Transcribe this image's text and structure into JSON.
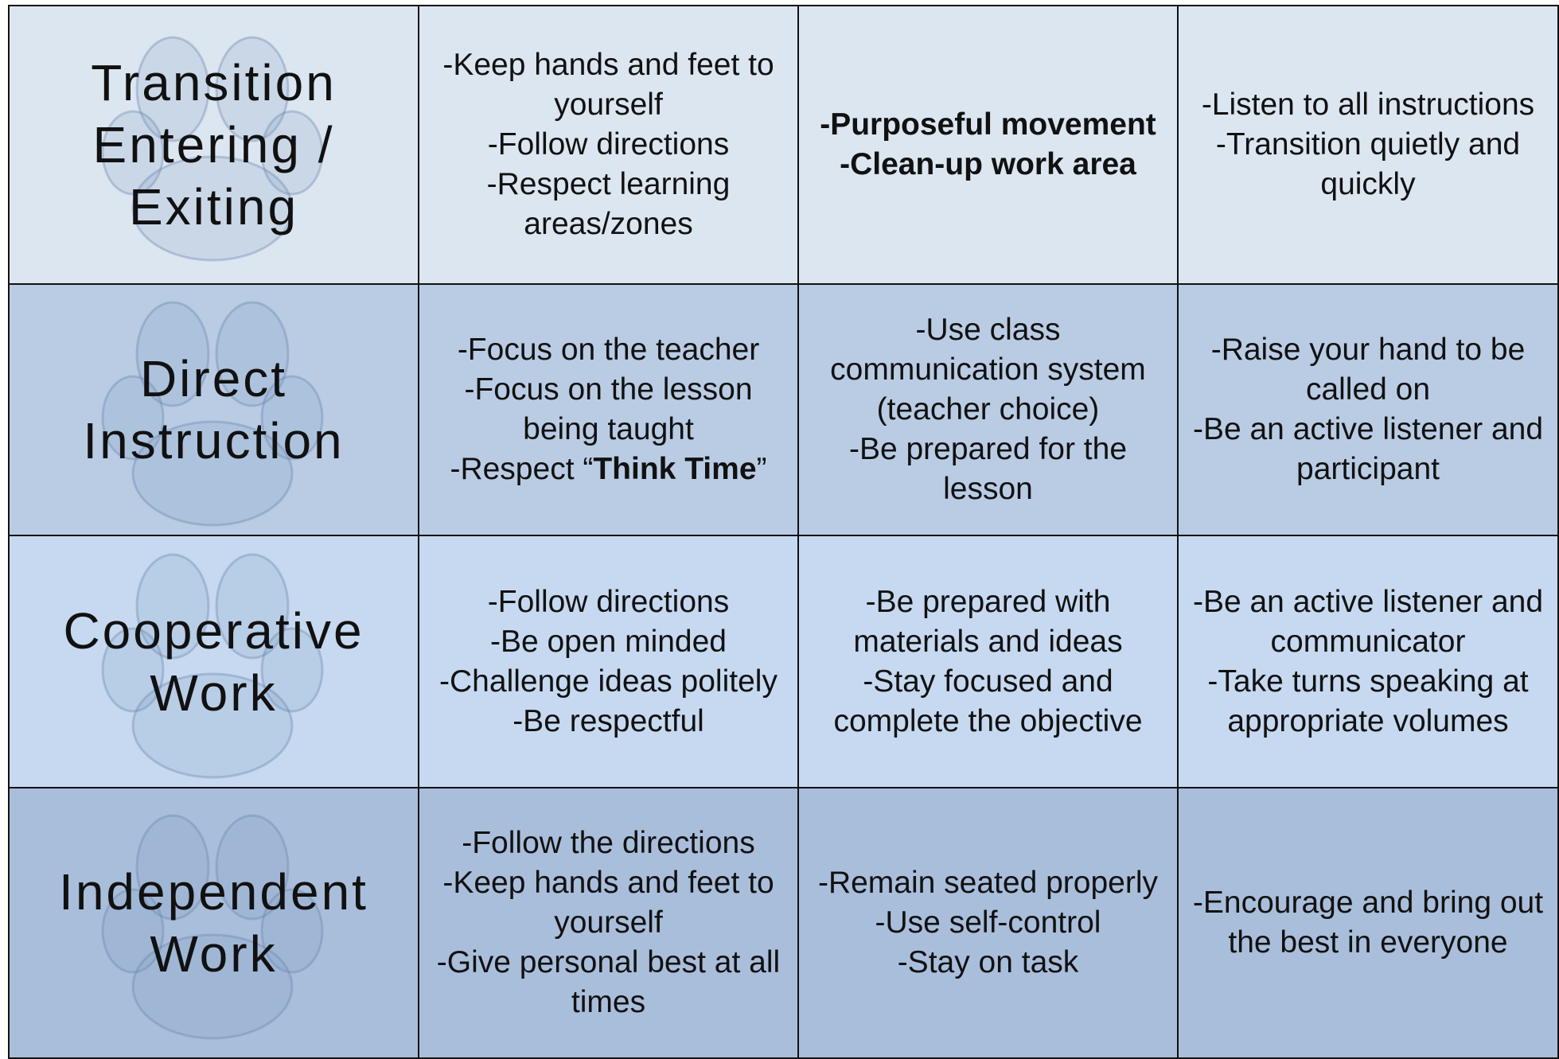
{
  "table": {
    "rows": [
      {
        "header": [
          "Transition",
          "Entering /",
          "Exiting"
        ],
        "color": "#dce6f1",
        "cells": [
          [
            [
              {
                "text": "-Keep hands and feet to yourself"
              }
            ],
            [
              {
                "text": "-Follow directions"
              }
            ],
            [
              {
                "text": "-Respect learning areas/zones"
              }
            ]
          ],
          [
            [
              {
                "text": "-Purposeful movement",
                "bold": true
              }
            ],
            [
              {
                "text": "-Clean-up work area",
                "bold": true
              }
            ]
          ],
          [
            [
              {
                "text": "-Listen to all instructions"
              }
            ],
            [
              {
                "text": "-Transition quietly and quickly"
              }
            ]
          ]
        ]
      },
      {
        "header": [
          "Direct",
          "Instruction"
        ],
        "color": "#b9cce4",
        "cells": [
          [
            [
              {
                "text": "-Focus on the teacher"
              }
            ],
            [
              {
                "text": "-Focus on the lesson being taught"
              }
            ],
            [
              {
                "text": "-Respect “"
              },
              {
                "text": "Think Time",
                "bold": true
              },
              {
                "text": "”"
              }
            ]
          ],
          [
            [
              {
                "text": "-Use class communication system (teacher choice)"
              }
            ],
            [
              {
                "text": "-Be prepared for the lesson"
              }
            ]
          ],
          [
            [
              {
                "text": "-Raise your hand to be called on"
              }
            ],
            [
              {
                "text": "-Be an active listener and participant"
              }
            ]
          ]
        ]
      },
      {
        "header": [
          "Cooperative",
          "Work"
        ],
        "color": "#c6d9f0",
        "cells": [
          [
            [
              {
                "text": "-Follow directions"
              }
            ],
            [
              {
                "text": "-Be open minded"
              }
            ],
            [
              {
                "text": "-Challenge ideas politely"
              }
            ],
            [
              {
                "text": "-Be respectful"
              }
            ]
          ],
          [
            [
              {
                "text": "-Be prepared with materials and ideas"
              }
            ],
            [
              {
                "text": "-Stay focused and complete the objective"
              }
            ]
          ],
          [
            [
              {
                "text": "-Be an active listener and communicator"
              }
            ],
            [
              {
                "text": "-Take turns speaking at appropriate volumes"
              }
            ]
          ]
        ]
      },
      {
        "header": [
          "Independent",
          "Work"
        ],
        "color": "#a9bedb",
        "cells": [
          [
            [
              {
                "text": "-Follow the directions"
              }
            ],
            [
              {
                "text": "-Keep hands and feet to yourself"
              }
            ],
            [
              {
                "text": "-Give personal best at all times"
              }
            ]
          ],
          [
            [
              {
                "text": "-Remain seated properly"
              }
            ],
            [
              {
                "text": "-Use self-control"
              }
            ],
            [
              {
                "text": "-Stay on task"
              }
            ]
          ],
          [
            [
              {
                "text": "-Encourage and bring out the best in everyone"
              }
            ]
          ]
        ]
      }
    ]
  }
}
